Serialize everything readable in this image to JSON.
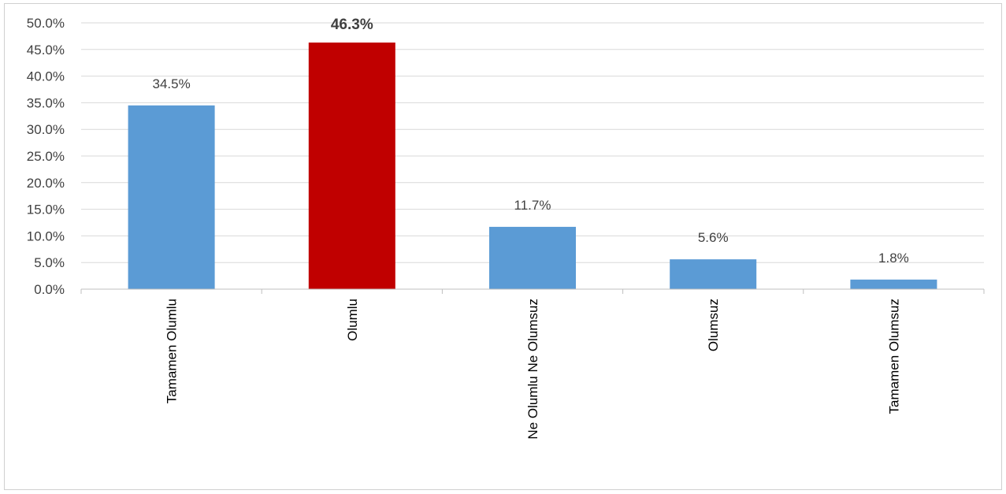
{
  "chart_data": {
    "type": "bar",
    "categories": [
      "Tamamen Olumlu",
      "Olumlu",
      "Ne Olumlu Ne Olumsuz",
      "Olumsuz",
      "Tamamen Olumsuz"
    ],
    "values": [
      34.5,
      46.3,
      11.7,
      5.6,
      1.8
    ],
    "value_labels": [
      "34.5%",
      "46.3%",
      "11.7%",
      "5.6%",
      "1.8%"
    ],
    "highlight_index": 1,
    "ylim": [
      0,
      50
    ],
    "yticks": [
      "0.0%",
      "5.0%",
      "10.0%",
      "15.0%",
      "20.0%",
      "25.0%",
      "30.0%",
      "35.0%",
      "40.0%",
      "45.0%",
      "50.0%"
    ],
    "grid": true,
    "legend": "none",
    "colors": {
      "bar": "#5b9bd5",
      "highlight": "#c00000",
      "grid": "#d9d9d9"
    }
  }
}
